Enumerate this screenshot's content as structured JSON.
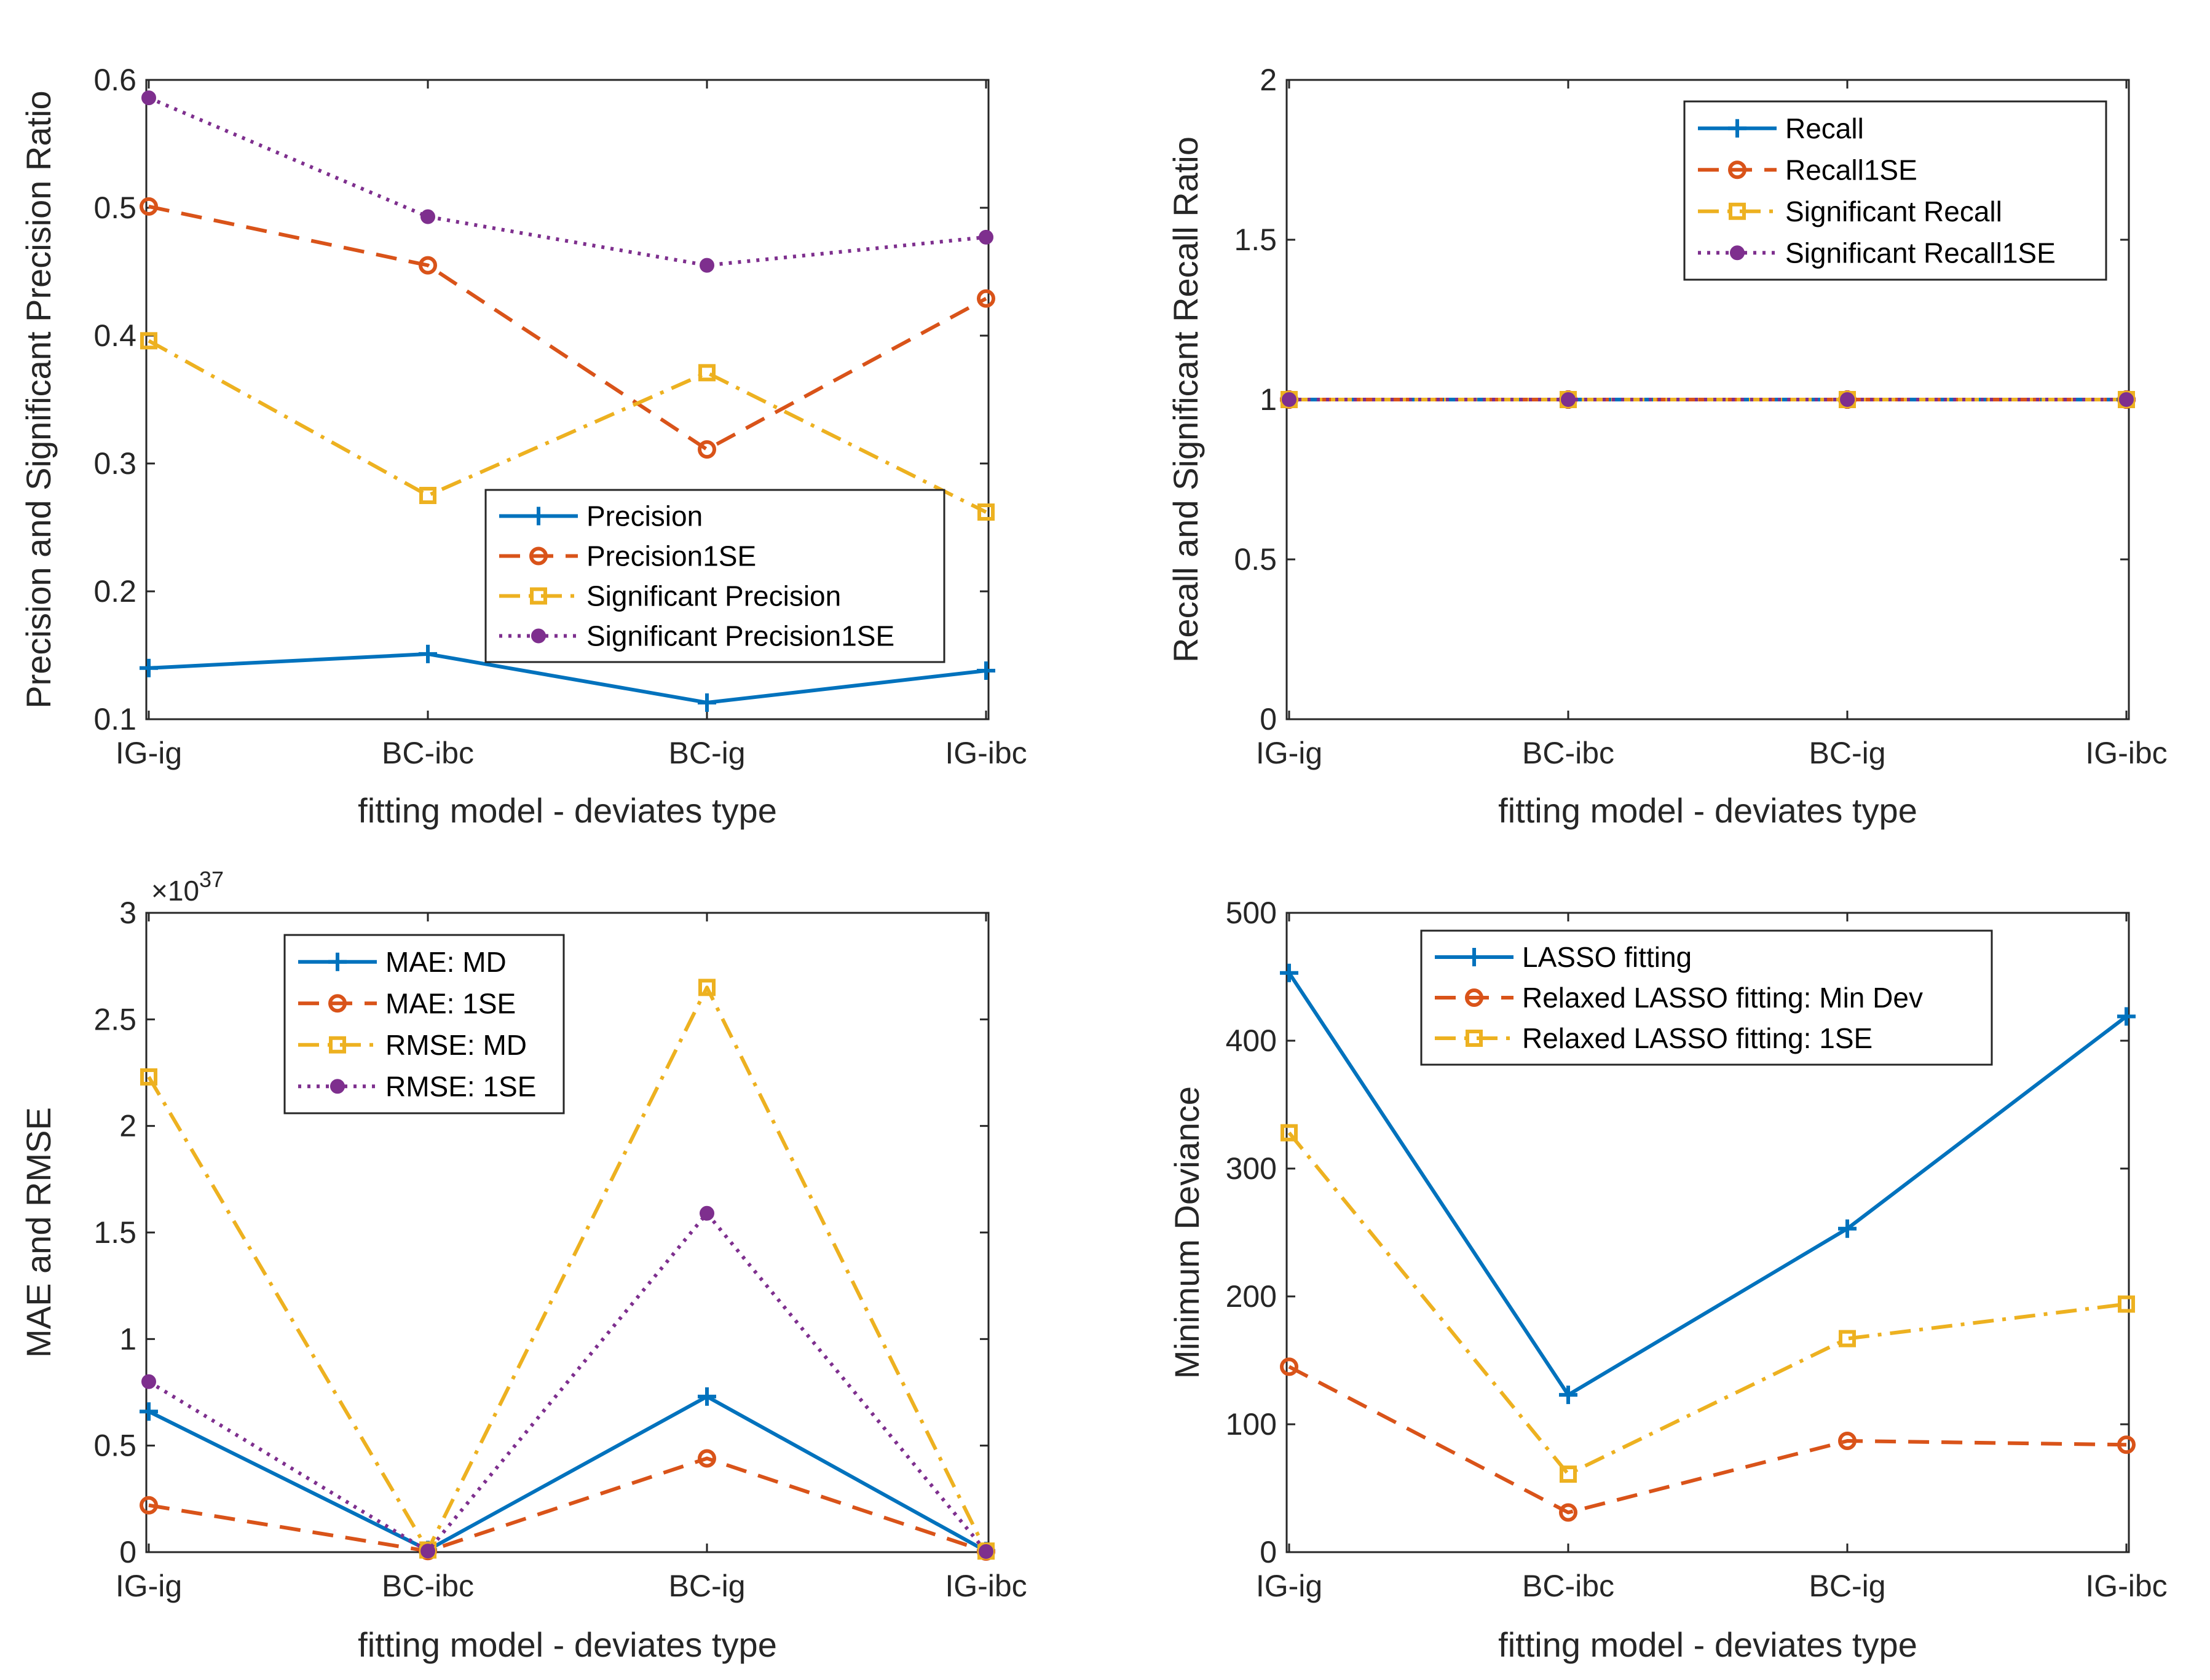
{
  "colors": {
    "blue": "#0072BD",
    "orange": "#D95319",
    "yellow": "#EDB120",
    "purple": "#7E2F8E",
    "axis": "#262626"
  },
  "chart_data": [
    {
      "type": "line",
      "title": "",
      "categories": [
        "IG-ig",
        "BC-ibc",
        "BC-ig",
        "IG-ibc"
      ],
      "xlabel": "fitting model - deviates type",
      "ylabel": "Precision and Significant Precision Ratio",
      "ylim": [
        0.1,
        0.6
      ],
      "yticks": [
        0.1,
        0.2,
        0.3,
        0.4,
        0.5,
        0.6
      ],
      "yticklabels": [
        "0.1",
        "0.2",
        "0.3",
        "0.4",
        "0.5",
        "0.6"
      ],
      "exponent": "",
      "legend_position": "bottom-right",
      "series": [
        {
          "name": "Precision",
          "values": [
            0.14,
            0.151,
            0.113,
            0.138
          ],
          "color": "blue",
          "style": "solid",
          "marker": "plus"
        },
        {
          "name": "Precision1SE",
          "values": [
            0.501,
            0.455,
            0.311,
            0.429
          ],
          "color": "orange",
          "style": "dashed",
          "marker": "circle"
        },
        {
          "name": "Significant Precision",
          "values": [
            0.396,
            0.275,
            0.371,
            0.262
          ],
          "color": "yellow",
          "style": "dashdot",
          "marker": "square"
        },
        {
          "name": "Significant Precision1SE",
          "values": [
            0.586,
            0.493,
            0.455,
            0.477
          ],
          "color": "purple",
          "style": "dotted",
          "marker": "dot"
        }
      ]
    },
    {
      "type": "line",
      "title": "",
      "categories": [
        "IG-ig",
        "BC-ibc",
        "BC-ig",
        "IG-ibc"
      ],
      "xlabel": "fitting model - deviates type",
      "ylabel": "Recall and Significant Recall Ratio",
      "ylim": [
        0,
        2
      ],
      "yticks": [
        0,
        0.5,
        1,
        1.5,
        2
      ],
      "yticklabels": [
        "0",
        "0.5",
        "1",
        "1.5",
        "2"
      ],
      "exponent": "",
      "legend_position": "top-right",
      "series": [
        {
          "name": "Recall",
          "values": [
            1,
            1,
            1,
            1
          ],
          "color": "blue",
          "style": "solid",
          "marker": "plus"
        },
        {
          "name": "Recall1SE",
          "values": [
            1,
            1,
            1,
            1
          ],
          "color": "orange",
          "style": "dashed",
          "marker": "circle"
        },
        {
          "name": "Significant Recall",
          "values": [
            1,
            1,
            1,
            1
          ],
          "color": "yellow",
          "style": "dashdot",
          "marker": "square"
        },
        {
          "name": "Significant Recall1SE",
          "values": [
            1,
            1,
            1,
            1
          ],
          "color": "purple",
          "style": "dotted",
          "marker": "dot"
        }
      ]
    },
    {
      "type": "line",
      "title": "",
      "categories": [
        "IG-ig",
        "BC-ibc",
        "BC-ig",
        "IG-ibc"
      ],
      "xlabel": "fitting model - deviates type",
      "ylabel": "MAE and RMSE",
      "ylim": [
        0,
        3
      ],
      "yticks": [
        0,
        0.5,
        1,
        1.5,
        2,
        2.5,
        3
      ],
      "yticklabels": [
        "0",
        "0.5",
        "1",
        "1.5",
        "2",
        "2.5",
        "3"
      ],
      "exponent": "×10",
      "exponent_power": "37",
      "legend_position": "top-left",
      "series": [
        {
          "name": "MAE: MD",
          "values": [
            0.66,
            0.01,
            0.73,
            0.005
          ],
          "color": "blue",
          "style": "solid",
          "marker": "plus"
        },
        {
          "name": "MAE: 1SE",
          "values": [
            0.22,
            0.005,
            0.44,
            0.003
          ],
          "color": "orange",
          "style": "dashed",
          "marker": "circle"
        },
        {
          "name": "RMSE: MD",
          "values": [
            2.23,
            0.01,
            2.65,
            0.005
          ],
          "color": "yellow",
          "style": "dashdot",
          "marker": "square"
        },
        {
          "name": "RMSE: 1SE",
          "values": [
            0.8,
            0.005,
            1.59,
            0.003
          ],
          "color": "purple",
          "style": "dotted",
          "marker": "dot"
        }
      ]
    },
    {
      "type": "line",
      "title": "",
      "categories": [
        "IG-ig",
        "BC-ibc",
        "BC-ig",
        "IG-ibc"
      ],
      "xlabel": "fitting model - deviates type",
      "ylabel": "Minimum Deviance",
      "ylim": [
        0,
        500
      ],
      "yticks": [
        0,
        100,
        200,
        300,
        400,
        500
      ],
      "yticklabels": [
        "0",
        "100",
        "200",
        "300",
        "400",
        "500"
      ],
      "exponent": "",
      "legend_position": "top-right",
      "series": [
        {
          "name": "LASSO fitting",
          "values": [
            453,
            123,
            253,
            419
          ],
          "color": "blue",
          "style": "solid",
          "marker": "plus"
        },
        {
          "name": "Relaxed LASSO fitting: Min Dev",
          "values": [
            145,
            31,
            87,
            84
          ],
          "color": "orange",
          "style": "dashed",
          "marker": "circle"
        },
        {
          "name": "Relaxed LASSO fitting: 1SE",
          "values": [
            328,
            61,
            167,
            194
          ],
          "color": "yellow",
          "style": "dashdot",
          "marker": "square"
        }
      ]
    }
  ]
}
